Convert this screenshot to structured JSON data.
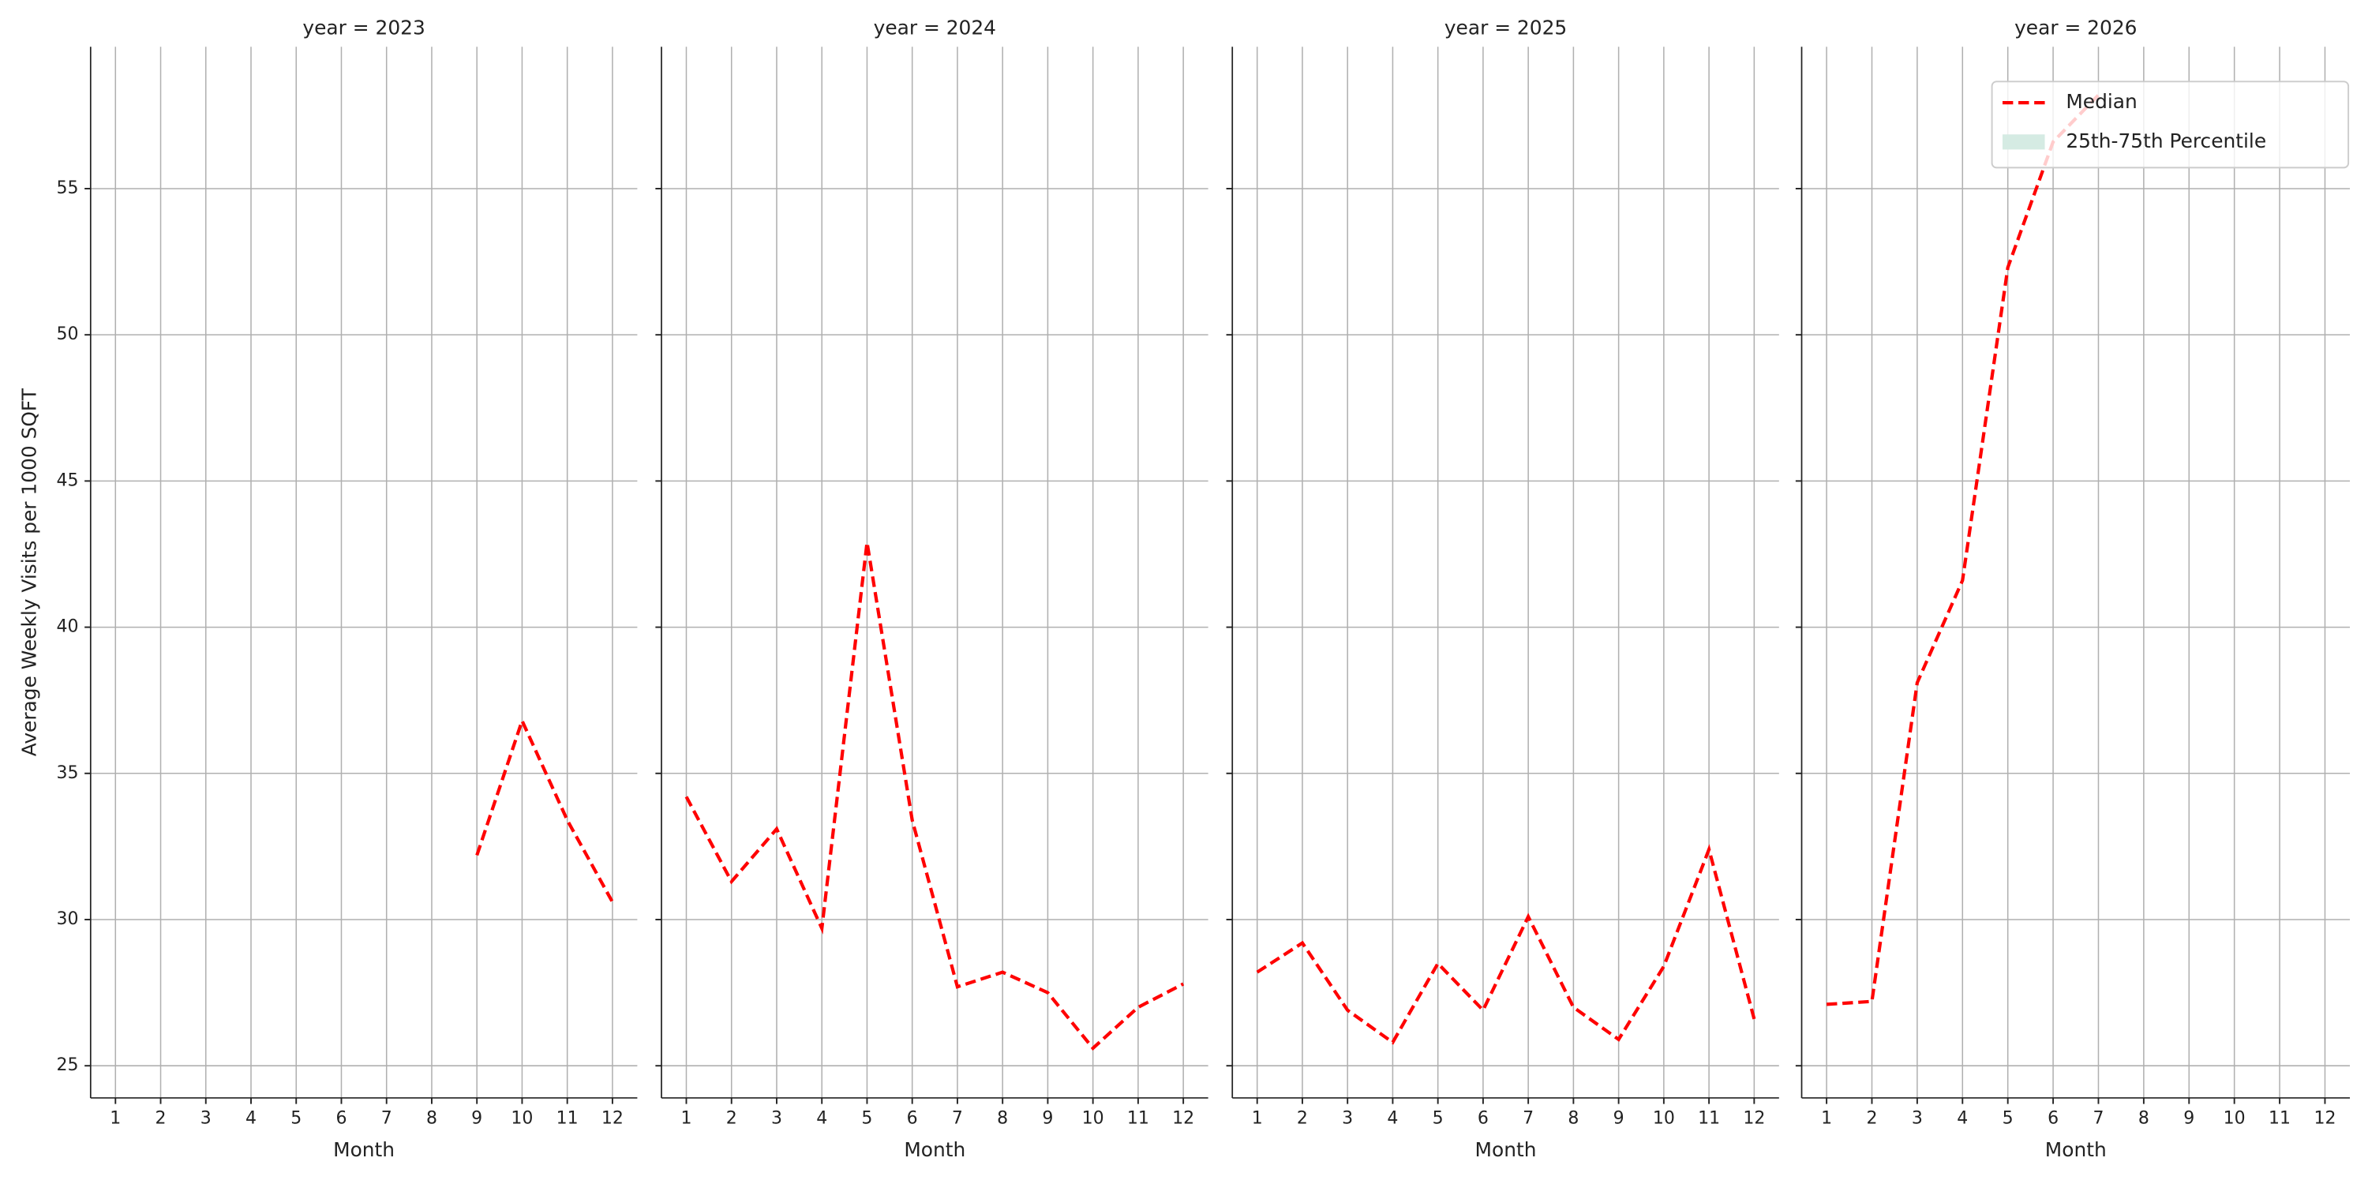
{
  "chart_data": [
    {
      "type": "line",
      "title": "year = 2023",
      "xlabel": "Month",
      "ylabel": "Average Weekly Visits per 1000 SQFT",
      "x": [
        1,
        2,
        3,
        4,
        5,
        6,
        7,
        8,
        9,
        10,
        11,
        12
      ],
      "xlim": [
        0.45,
        12.55
      ],
      "xticks": [
        1,
        2,
        3,
        4,
        5,
        6,
        7,
        8,
        9,
        10,
        11,
        12
      ],
      "ylim": [
        23.9,
        59.85
      ],
      "yticks": [
        25,
        30,
        35,
        40,
        45,
        50,
        55
      ],
      "grid": true,
      "series": [
        {
          "name": "Median",
          "color": "#ff0000",
          "dash": true,
          "values": [
            null,
            null,
            null,
            null,
            null,
            null,
            null,
            null,
            32.2,
            36.8,
            33.4,
            30.6
          ]
        }
      ]
    },
    {
      "type": "line",
      "title": "year = 2024",
      "xlabel": "Month",
      "x": [
        1,
        2,
        3,
        4,
        5,
        6,
        7,
        8,
        9,
        10,
        11,
        12
      ],
      "xlim": [
        0.45,
        12.55
      ],
      "xticks": [
        1,
        2,
        3,
        4,
        5,
        6,
        7,
        8,
        9,
        10,
        11,
        12
      ],
      "ylim": [
        23.9,
        59.85
      ],
      "yticks": [
        25,
        30,
        35,
        40,
        45,
        50,
        55
      ],
      "grid": true,
      "series": [
        {
          "name": "Median",
          "color": "#ff0000",
          "dash": true,
          "values": [
            34.2,
            31.3,
            33.1,
            29.7,
            42.9,
            33.4,
            27.7,
            28.2,
            27.5,
            25.6,
            27.0,
            27.8
          ]
        }
      ]
    },
    {
      "type": "line",
      "title": "year = 2025",
      "xlabel": "Month",
      "x": [
        1,
        2,
        3,
        4,
        5,
        6,
        7,
        8,
        9,
        10,
        11,
        12
      ],
      "xlim": [
        0.45,
        12.55
      ],
      "xticks": [
        1,
        2,
        3,
        4,
        5,
        6,
        7,
        8,
        9,
        10,
        11,
        12
      ],
      "ylim": [
        23.9,
        59.85
      ],
      "yticks": [
        25,
        30,
        35,
        40,
        45,
        50,
        55
      ],
      "grid": true,
      "series": [
        {
          "name": "Median",
          "color": "#ff0000",
          "dash": true,
          "values": [
            28.2,
            29.2,
            26.9,
            25.8,
            28.5,
            26.9,
            30.1,
            27.0,
            25.9,
            28.4,
            32.4,
            26.6
          ]
        }
      ]
    },
    {
      "type": "line",
      "title": "year = 2026",
      "xlabel": "Month",
      "x": [
        1,
        2,
        3,
        4,
        5,
        6,
        7,
        8,
        9,
        10,
        11,
        12
      ],
      "xlim": [
        0.45,
        12.55
      ],
      "xticks": [
        1,
        2,
        3,
        4,
        5,
        6,
        7,
        8,
        9,
        10,
        11,
        12
      ],
      "ylim": [
        23.9,
        59.85
      ],
      "yticks": [
        25,
        30,
        35,
        40,
        45,
        50,
        55
      ],
      "grid": true,
      "legend": "upper right",
      "series": [
        {
          "name": "Median",
          "color": "#ff0000",
          "dash": true,
          "values": [
            27.1,
            27.2,
            38.1,
            41.6,
            52.3,
            56.6,
            58.2,
            null,
            null,
            null,
            null,
            null
          ]
        },
        {
          "name": "25th-75th Percentile",
          "color": "#d5ebe3",
          "band": true,
          "values": [
            null,
            null,
            null,
            null,
            null,
            null,
            null,
            null,
            null,
            null,
            null,
            null
          ]
        }
      ]
    }
  ]
}
